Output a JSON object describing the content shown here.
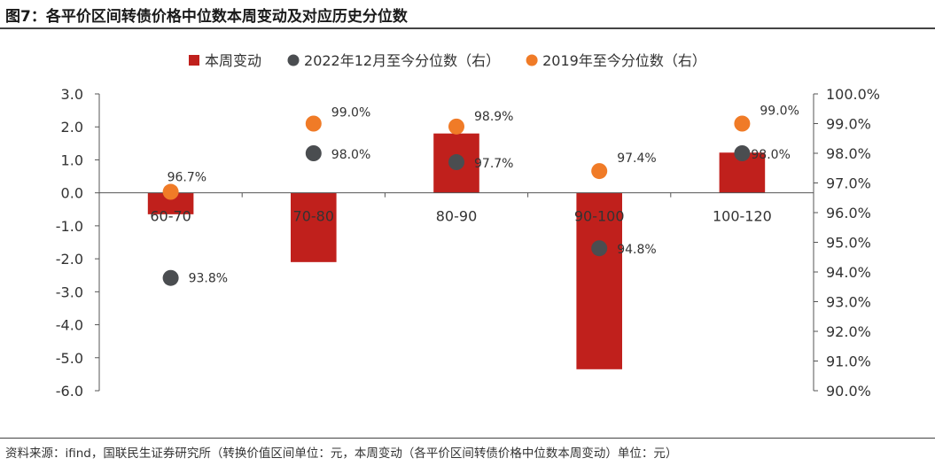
{
  "title": "图7：各平价区间转债价格中位数本周变动及对应历史分位数",
  "source": "资料来源：ifind，国联民生证券研究所（转换价值区间单位：元，本周变动（各平价区间转债价格中位数本周变动）单位：元）",
  "chart_data": {
    "type": "bar",
    "categories": [
      "60-70",
      "70-80",
      "80-90",
      "90-100",
      "100-120"
    ],
    "series": [
      {
        "name": "本周变动",
        "type": "bar",
        "axis": "left",
        "color": "#c0201c",
        "values": [
          -0.65,
          -2.1,
          1.8,
          -5.35,
          1.22
        ]
      },
      {
        "name": "2022年12月至今分位数（右）",
        "type": "scatter",
        "axis": "right",
        "color": "#4a4d50",
        "values": [
          93.8,
          98.0,
          97.7,
          94.8,
          98.0
        ],
        "labels": [
          "93.8%",
          "98.0%",
          "97.7%",
          "94.8%",
          "98.0%"
        ]
      },
      {
        "name": "2019年至今分位数（右）",
        "type": "scatter",
        "axis": "right",
        "color": "#f07b27",
        "values": [
          96.7,
          99.0,
          98.9,
          97.4,
          99.0
        ],
        "labels": [
          "96.7%",
          "99.0%",
          "98.9%",
          "97.4%",
          "99.0%"
        ]
      }
    ],
    "y_left": {
      "ylim": [
        -6.0,
        3.0
      ],
      "ticks": [
        3.0,
        2.0,
        1.0,
        0.0,
        -1.0,
        -2.0,
        -3.0,
        -4.0,
        -5.0,
        -6.0
      ],
      "tick_labels": [
        "3.0",
        "2.0",
        "1.0",
        "0.0",
        "-1.0",
        "-2.0",
        "-3.0",
        "-4.0",
        "-5.0",
        "-6.0"
      ]
    },
    "y_right": {
      "ylim": [
        90.0,
        100.0
      ],
      "ticks": [
        100,
        99,
        98,
        97,
        96,
        95,
        94,
        93,
        92,
        91,
        90
      ],
      "tick_labels": [
        "100.0%",
        "99.0%",
        "98.0%",
        "97.0%",
        "96.0%",
        "95.0%",
        "94.0%",
        "93.0%",
        "92.0%",
        "91.0%",
        "90.0%"
      ]
    },
    "grid": false,
    "legend_position": "top"
  }
}
